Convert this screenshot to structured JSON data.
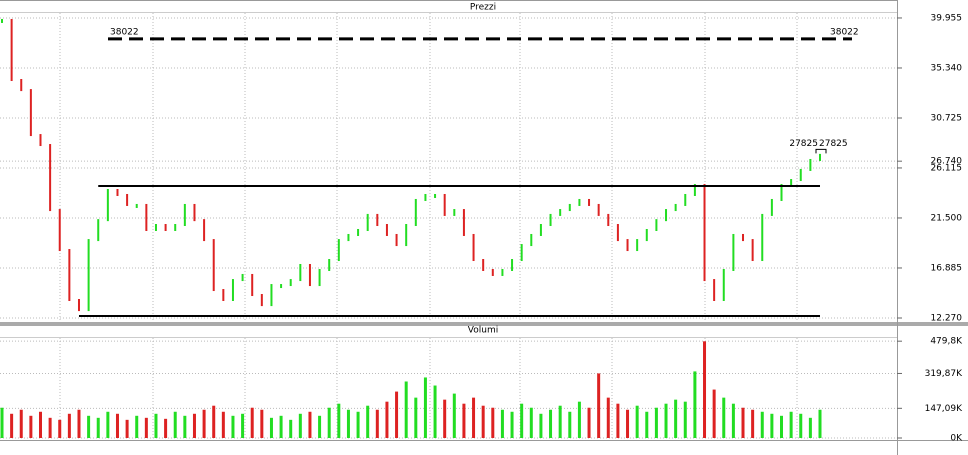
{
  "chart_data": [
    {
      "type": "ohlc",
      "title": "Prezzi",
      "values": [
        39770,
        34230,
        33300,
        29150,
        28230,
        22230,
        18540,
        13930,
        13000,
        19460,
        21300,
        24080,
        23620,
        22700,
        22700,
        20390,
        20850,
        20390,
        20850,
        22700,
        21300,
        19460,
        14850,
        13930,
        15770,
        16240,
        14390,
        13460,
        15310,
        15310,
        15770,
        17160,
        15310,
        16700,
        17620,
        19460,
        19930,
        20390,
        21780,
        20850,
        19930,
        19000,
        20850,
        23160,
        23620,
        23620,
        21780,
        22230,
        19930,
        17620,
        16700,
        16240,
        16700,
        17620,
        19000,
        19930,
        20850,
        21780,
        22230,
        22700,
        23160,
        22700,
        21780,
        20850,
        19460,
        18540,
        19460,
        20390,
        21300,
        22230,
        22700,
        23620,
        24540,
        15770,
        13930,
        16700,
        19930,
        19460,
        17620,
        21780,
        23160,
        24540,
        25000,
        25930,
        26850,
        27320
      ],
      "up_color": "#22dd22",
      "down_color": "#dd2222",
      "ylim": [
        11900,
        40690
      ],
      "yticks": [
        {
          "value": 39955,
          "label": "39.955"
        },
        {
          "value": 35340,
          "label": "35.340"
        },
        {
          "value": 30725,
          "label": "30.725"
        },
        {
          "value": 26740,
          "label": "26.740"
        },
        {
          "value": 26115,
          "label": "26.115"
        },
        {
          "value": 21500,
          "label": "21.500"
        },
        {
          "value": 16885,
          "label": "16.885"
        },
        {
          "value": 12270,
          "label": "12.270"
        }
      ],
      "grid": true,
      "reference_line": {
        "value": 38022,
        "label": "38022"
      },
      "last_marker": {
        "value": 27825,
        "label": "27825"
      },
      "levels": [
        {
          "value": 24450,
          "from": 10,
          "to": 85
        },
        {
          "value": 12450,
          "from": 8,
          "to": 85
        }
      ]
    },
    {
      "type": "bar",
      "title": "Volumi",
      "values": [
        150000,
        120000,
        140000,
        110000,
        130000,
        100000,
        90000,
        120000,
        140000,
        110000,
        100000,
        130000,
        120000,
        90000,
        110000,
        100000,
        120000,
        95000,
        130000,
        110000,
        120000,
        140000,
        160000,
        130000,
        110000,
        120000,
        150000,
        140000,
        100000,
        110000,
        90000,
        120000,
        130000,
        110000,
        150000,
        170000,
        140000,
        130000,
        160000,
        140000,
        180000,
        230000,
        280000,
        200000,
        300000,
        260000,
        190000,
        220000,
        170000,
        200000,
        160000,
        150000,
        140000,
        130000,
        170000,
        150000,
        120000,
        140000,
        160000,
        130000,
        180000,
        150000,
        320000,
        200000,
        170000,
        140000,
        160000,
        130000,
        150000,
        170000,
        190000,
        180000,
        330000,
        479000,
        240000,
        200000,
        170000,
        150000,
        140000,
        130000,
        120000,
        110000,
        130000,
        120000,
        100000,
        140000
      ],
      "ylim": [
        0,
        555000
      ],
      "yticks": [
        {
          "value": 479800,
          "label": "479,8K"
        },
        {
          "value": 319870,
          "label": "319,87K"
        },
        {
          "value": 147090,
          "label": "147,09K"
        },
        {
          "value": 0,
          "label": "0K"
        }
      ],
      "grid": true
    }
  ]
}
